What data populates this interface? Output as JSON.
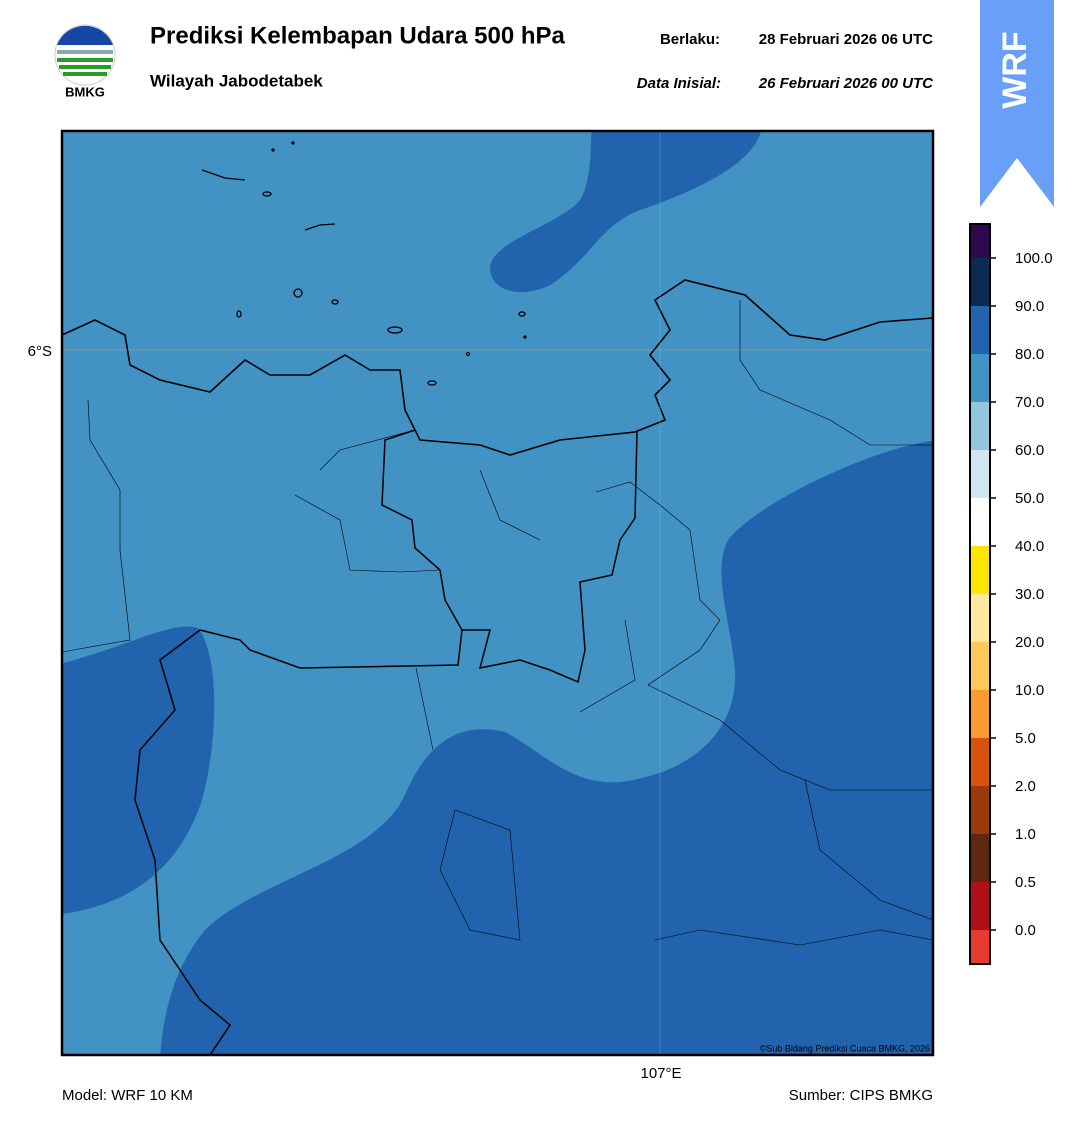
{
  "header": {
    "title": "Prediksi Kelembapan Udara 500 hPa",
    "subtitle": "Wilayah Jabodetabek",
    "valid_label": "Berlaku:",
    "valid": "28 Februari 2026 06 UTC",
    "init_label": "Data Inisial:",
    "init": "26 Februari 2026 00 UTC",
    "logo": "BMKG",
    "badge": "WRF"
  },
  "map": {
    "lat_label": "6°S",
    "lon_label": "107°E",
    "credit": "©Sub Bidang Prediksi Cuaca BMKG, 2026"
  },
  "colorbar": {
    "labels": [
      "100.0",
      "90.0",
      "80.0",
      "70.0",
      "60.0",
      "50.0",
      "40.0",
      "30.0",
      "20.0",
      "10.0",
      "5.0",
      "2.0",
      "1.0",
      "0.5",
      "0.0"
    ],
    "colors": [
      "#2d0a4e",
      "#0b2a52",
      "#2163ad",
      "#4292c4",
      "#92c5de",
      "#d1e5f0",
      "#ffffff",
      "#ffe600",
      "#ffe9a0",
      "#ffc85a",
      "#f99a30",
      "#d9520b",
      "#9a3a0a",
      "#5e2a0f",
      "#b01018",
      "#e83a30"
    ]
  },
  "footer": {
    "model": "Model: WRF 10 KM",
    "source": "Sumber: CIPS BMKG"
  }
}
